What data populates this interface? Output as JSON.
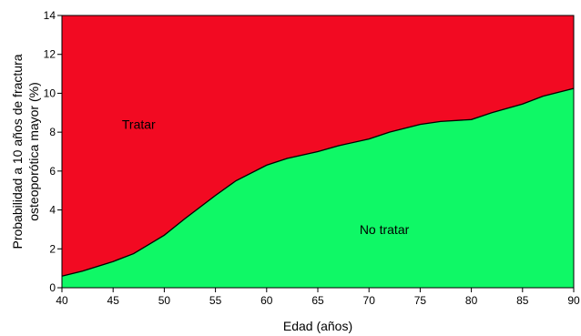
{
  "chart_data": {
    "type": "area",
    "xlabel": "Edad (años)",
    "ylabel_lines": [
      "Probabilidad a 10 años de fractura",
      "osteoporótica mayor (%)"
    ],
    "xlim": [
      40,
      90
    ],
    "ylim": [
      0,
      14
    ],
    "x_ticks": [
      40,
      45,
      50,
      55,
      60,
      65,
      70,
      75,
      80,
      85,
      90
    ],
    "y_ticks": [
      0,
      2,
      4,
      6,
      8,
      10,
      12,
      14
    ],
    "grid": false,
    "threshold": {
      "x": [
        40,
        42,
        45,
        47,
        50,
        52,
        55,
        57,
        60,
        62,
        65,
        67,
        70,
        72,
        75,
        77,
        80,
        82,
        85,
        87,
        90
      ],
      "y": [
        0.6,
        0.85,
        1.35,
        1.75,
        2.7,
        3.55,
        4.75,
        5.5,
        6.3,
        6.65,
        7.0,
        7.3,
        7.65,
        8.0,
        8.4,
        8.55,
        8.65,
        9.0,
        9.45,
        9.85,
        10.25
      ]
    },
    "regions": [
      {
        "label": "Tratar",
        "position": "above",
        "color": "#f20a22",
        "label_at": [
          47.5,
          8.4
        ]
      },
      {
        "label": "No tratar",
        "position": "below",
        "color": "#0ff866",
        "label_at": [
          71.5,
          3.0
        ]
      }
    ]
  }
}
